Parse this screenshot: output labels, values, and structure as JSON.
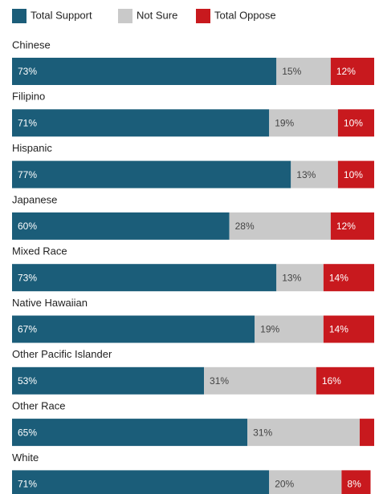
{
  "chart_data": {
    "type": "stacked-bar-horizontal",
    "categories": [
      "Chinese",
      "Filipino",
      "Hispanic",
      "Japanese",
      "Mixed Race",
      "Native Hawaiian",
      "Other Pacific Islander",
      "Other Race",
      "White"
    ],
    "series": [
      {
        "name": "Total Support",
        "color": "#1b5d79",
        "label_color": "#ffffff",
        "values": [
          73,
          71,
          77,
          60,
          73,
          67,
          53,
          65,
          71
        ],
        "value_labels": [
          "73%",
          "71%",
          "77%",
          "60%",
          "73%",
          "67%",
          "53%",
          "65%",
          "71%"
        ]
      },
      {
        "name": "Not Sure",
        "color": "#c9c9c9",
        "label_color": "#444444",
        "values": [
          15,
          19,
          13,
          28,
          13,
          19,
          31,
          31,
          20
        ],
        "value_labels": [
          "15%",
          "19%",
          "13%",
          "28%",
          "13%",
          "19%",
          "31%",
          "31%",
          "20%"
        ]
      },
      {
        "name": "Total Oppose",
        "color": "#c8191e",
        "label_color": "#ffffff",
        "values": [
          12,
          10,
          10,
          12,
          14,
          14,
          16,
          4,
          8
        ],
        "value_labels": [
          "12%",
          "10%",
          "10%",
          "12%",
          "14%",
          "14%",
          "16%",
          null,
          "8%"
        ]
      }
    ],
    "xlim": [
      0,
      100
    ]
  }
}
